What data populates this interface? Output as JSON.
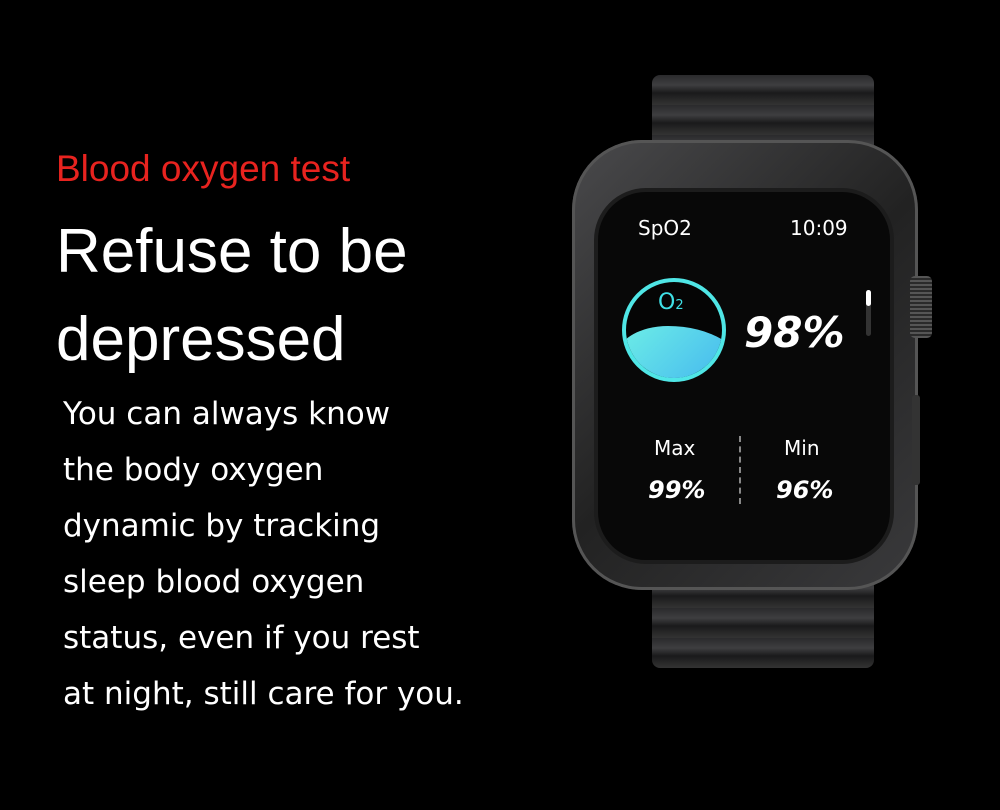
{
  "subtitle": "Blood oxygen test",
  "headline": [
    "Refuse to be",
    "depressed"
  ],
  "description": [
    "You can always know",
    "the body oxygen",
    "dynamic by tracking",
    "sleep blood oxygen",
    "status, even if you rest",
    "at night, still care for you."
  ],
  "watch": {
    "title": "SpO2",
    "time": "10:09",
    "icon": "o2-water-icon",
    "o2_label": "O",
    "o2_sub": "2",
    "spo2": "98%",
    "max_label": "Max",
    "max_value": "99%",
    "min_label": "Min",
    "min_value": "96%"
  },
  "colors": {
    "accent": "#e8231f",
    "icon_cyan": "#4fe6e6"
  }
}
